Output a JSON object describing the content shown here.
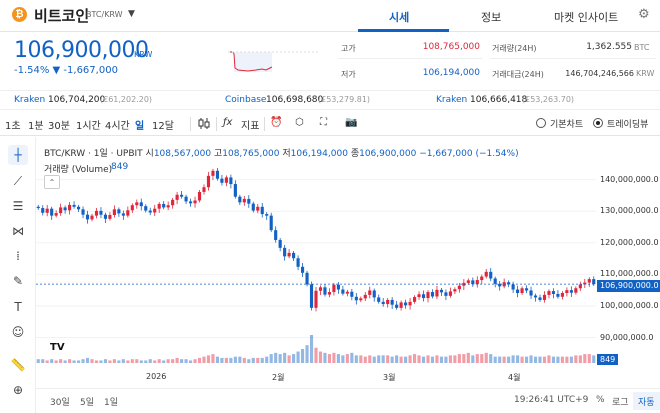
{
  "header": {
    "coin_logo": "₿",
    "coin_name": "비트코인",
    "pair": "BTC/KRW",
    "caret": "▼",
    "tabs": [
      {
        "label": "시세",
        "active": true
      },
      {
        "label": "정보",
        "active": false
      },
      {
        "label": "마켓 인사이트",
        "active": false
      }
    ],
    "settings_icon": "gear-icon"
  },
  "ticker": {
    "price": "106,900,000",
    "unit": "KRW",
    "change": "-1.54% ▼ -1,667,000",
    "color_down": "#1261c4",
    "color_up": "#e0263b",
    "high_label": "고가",
    "high_value": "108,765,000",
    "low_label": "저가",
    "low_value": "106,194,000",
    "volume_label": "거래량(24H)",
    "volume_value": "1,362.555",
    "volume_unit": "BTC",
    "amount_label": "거래대금(24H)",
    "amount_value": "146,704,246,566",
    "amount_unit": "KRW"
  },
  "exchanges": [
    {
      "name": "Kraken",
      "value": "106,704,200",
      "sub": "(€61,202.20)"
    },
    {
      "name": "Coinbase",
      "value": "106,698,680",
      "sub": "(£53,279.81)"
    },
    {
      "name": "Kraken",
      "value": "106,666,418",
      "sub": "(£53,263.70)"
    }
  ],
  "toolbar": {
    "intervals": [
      {
        "label": "1초",
        "active": false
      },
      {
        "label": "1분",
        "active": false
      },
      {
        "label": "30분",
        "active": false
      },
      {
        "label": "1시간",
        "active": false
      },
      {
        "label": "4시간",
        "active": false
      },
      {
        "label": "일",
        "active": true
      },
      {
        "label": "12달",
        "active": false
      }
    ],
    "indicator_label": "지표",
    "radio_basic": "기본차트",
    "radio_tv": "트레이딩뷰",
    "radio_selected": "트레이딩뷰"
  },
  "chart": {
    "title": "BTC/KRW · 1일 · UPBIT",
    "ohlc": [
      {
        "k": "시",
        "v": "108,567,000"
      },
      {
        "k": "고",
        "v": "108,765,000"
      },
      {
        "k": "저",
        "v": "106,194,000"
      },
      {
        "k": "종",
        "v": "106,900,000"
      }
    ],
    "change": "−1,667,000 (−1.54%)",
    "volume_label": "거래량 (Volume)",
    "volume_value": "849",
    "price_tag": "106,900,000.0",
    "volume_tag": "849",
    "tv_logo": "TV"
  },
  "chart_data": {
    "type": "candlestick",
    "y_ticks": [
      "140,000,000.0",
      "130,000,000.0",
      "120,000,000.0",
      "110,000,000.0",
      "100,000,000.0",
      "90,000,000.0"
    ],
    "x_ticks": [
      "2026",
      "2월",
      "3월",
      "4월"
    ],
    "ylim": [
      87000000,
      144000000
    ],
    "last_close": 106900000,
    "up_color": "#e0263b",
    "down_color": "#1261c4",
    "closes": [
      131.0,
      129.5,
      130.8,
      128.6,
      129.4,
      131.2,
      130.3,
      132.0,
      131.4,
      130.6,
      128.9,
      127.4,
      128.6,
      130.1,
      128.9,
      127.6,
      128.8,
      130.6,
      129.3,
      128.6,
      130.3,
      131.9,
      132.8,
      131.6,
      130.2,
      129.6,
      130.8,
      132.3,
      131.2,
      131.9,
      133.6,
      135.2,
      134.6,
      133.1,
      132.5,
      133.4,
      136.1,
      137.6,
      141.2,
      142.8,
      140.3,
      139.0,
      140.7,
      138.6,
      134.6,
      132.8,
      133.9,
      132.4,
      130.2,
      131.4,
      129.1,
      128.6,
      124.0,
      120.9,
      118.4,
      115.7,
      116.8,
      115.1,
      112.4,
      110.5,
      106.8,
      99.4,
      104.8,
      105.9,
      103.6,
      104.4,
      106.7,
      105.2,
      103.9,
      104.5,
      102.9,
      101.8,
      102.4,
      103.5,
      104.9,
      102.7,
      101.3,
      100.6,
      101.9,
      100.4,
      99.4,
      101.1,
      100.2,
      101.3,
      102.8,
      103.7,
      102.5,
      104.4,
      103.0,
      105.1,
      104.3,
      103.2,
      104.6,
      105.3,
      106.4,
      107.3,
      108.1,
      106.9,
      108.2,
      109.3,
      110.8,
      108.7,
      107.0,
      106.2,
      107.5,
      106.8,
      105.2,
      104.1,
      105.6,
      104.9,
      103.3,
      102.7,
      101.9,
      103.5,
      104.7,
      103.8,
      102.9,
      104.1,
      105.0,
      104.2,
      105.6,
      106.8,
      107.4,
      108.5,
      106.9
    ],
    "volumes": [
      3,
      3,
      2,
      3,
      2,
      3,
      2,
      3,
      2,
      2,
      3,
      4,
      3,
      2,
      2,
      3,
      2,
      3,
      2,
      3,
      2,
      3,
      3,
      2,
      2,
      3,
      2,
      3,
      2,
      3,
      3,
      4,
      3,
      3,
      2,
      3,
      4,
      5,
      6,
      7,
      5,
      4,
      4,
      4,
      5,
      5,
      4,
      3,
      4,
      4,
      4,
      5,
      7,
      8,
      7,
      8,
      6,
      7,
      9,
      11,
      14,
      22,
      12,
      9,
      8,
      7,
      8,
      7,
      6,
      7,
      8,
      6,
      6,
      5,
      6,
      5,
      6,
      6,
      6,
      5,
      6,
      5,
      5,
      6,
      7,
      6,
      5,
      6,
      5,
      6,
      5,
      5,
      6,
      6,
      7,
      7,
      8,
      6,
      7,
      7,
      8,
      7,
      5,
      5,
      5,
      5,
      6,
      6,
      5,
      5,
      6,
      5,
      5,
      5,
      6,
      5,
      5,
      5,
      5,
      5,
      6,
      6,
      7,
      7,
      6
    ]
  },
  "bottom": {
    "ranges": [
      "30일",
      "5일",
      "1일"
    ],
    "time": "19:26:41 UTC+9",
    "percent": "%",
    "log": "로그",
    "auto": "자동"
  }
}
